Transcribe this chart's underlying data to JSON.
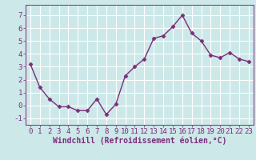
{
  "x": [
    0,
    1,
    2,
    3,
    4,
    5,
    6,
    7,
    8,
    9,
    10,
    11,
    12,
    13,
    14,
    15,
    16,
    17,
    18,
    19,
    20,
    21,
    22,
    23
  ],
  "y": [
    3.2,
    1.4,
    0.5,
    -0.1,
    -0.1,
    -0.4,
    -0.4,
    0.5,
    -0.7,
    0.1,
    2.3,
    3.0,
    3.6,
    5.2,
    5.4,
    6.1,
    7.0,
    5.6,
    5.0,
    3.9,
    3.7,
    4.1,
    3.6,
    3.4
  ],
  "line_color": "#7b2d7b",
  "marker": "D",
  "markersize": 2.5,
  "linewidth": 1.0,
  "bg_color": "#cce8e8",
  "grid_color": "#b0d8d8",
  "xlabel": "Windchill (Refroidissement éolien,°C)",
  "xlabel_fontsize": 7,
  "xtick_labels": [
    "0",
    "1",
    "2",
    "3",
    "4",
    "5",
    "6",
    "7",
    "8",
    "9",
    "10",
    "11",
    "12",
    "13",
    "14",
    "15",
    "16",
    "17",
    "18",
    "19",
    "20",
    "21",
    "22",
    "23"
  ],
  "yticks": [
    -1,
    0,
    1,
    2,
    3,
    4,
    5,
    6,
    7
  ],
  "ylim": [
    -1.5,
    7.8
  ],
  "xlim": [
    -0.5,
    23.5
  ],
  "tick_fontsize": 6.5,
  "tick_color": "#7b2d7b",
  "axis_color": "#7b2d7b",
  "grid_color_white": "#d4ecec"
}
